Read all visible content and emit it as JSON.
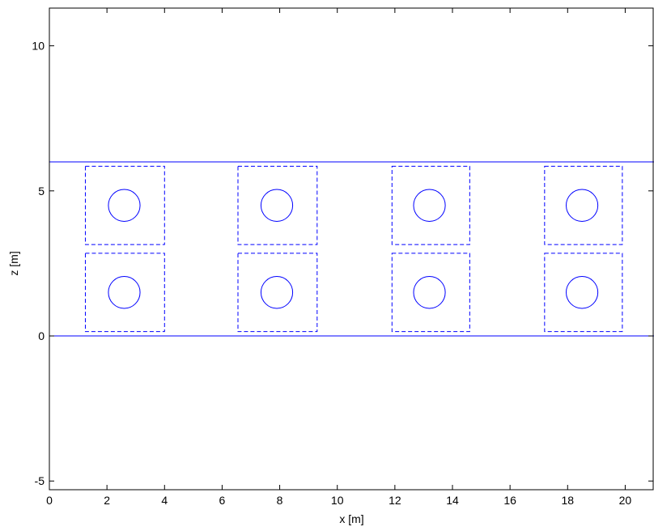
{
  "chart_data": {
    "type": "diagram",
    "xlabel": "x [m]",
    "ylabel": "z [m]",
    "xlim": [
      0,
      21
    ],
    "ylim": [
      -5.3,
      11.3
    ],
    "xticks": [
      0,
      2,
      4,
      6,
      8,
      10,
      12,
      14,
      16,
      18,
      20
    ],
    "yticks": [
      -5,
      0,
      5,
      10
    ],
    "grid": false,
    "colors": {
      "shapes": "#0000ff",
      "axes": "#000000"
    },
    "horizontal_lines": [
      0,
      6
    ],
    "squares": [
      {
        "x": [
          1.25,
          4.0
        ],
        "z": [
          0.15,
          2.85
        ]
      },
      {
        "x": [
          1.25,
          4.0
        ],
        "z": [
          3.15,
          5.85
        ]
      },
      {
        "x": [
          6.55,
          9.3
        ],
        "z": [
          0.15,
          2.85
        ]
      },
      {
        "x": [
          6.55,
          9.3
        ],
        "z": [
          3.15,
          5.85
        ]
      },
      {
        "x": [
          11.9,
          14.6
        ],
        "z": [
          0.15,
          2.85
        ]
      },
      {
        "x": [
          11.9,
          14.6
        ],
        "z": [
          3.15,
          5.85
        ]
      },
      {
        "x": [
          17.2,
          19.9
        ],
        "z": [
          0.15,
          2.85
        ]
      },
      {
        "x": [
          17.2,
          19.9
        ],
        "z": [
          3.15,
          5.85
        ]
      }
    ],
    "circles": [
      {
        "cx": 2.6,
        "cz": 1.5,
        "r": 0.55
      },
      {
        "cx": 2.6,
        "cz": 4.5,
        "r": 0.55
      },
      {
        "cx": 7.9,
        "cz": 1.5,
        "r": 0.55
      },
      {
        "cx": 7.9,
        "cz": 4.5,
        "r": 0.55
      },
      {
        "cx": 13.2,
        "cz": 1.5,
        "r": 0.55
      },
      {
        "cx": 13.2,
        "cz": 4.5,
        "r": 0.55
      },
      {
        "cx": 18.5,
        "cz": 1.5,
        "r": 0.55
      },
      {
        "cx": 18.5,
        "cz": 4.5,
        "r": 0.55
      }
    ]
  }
}
